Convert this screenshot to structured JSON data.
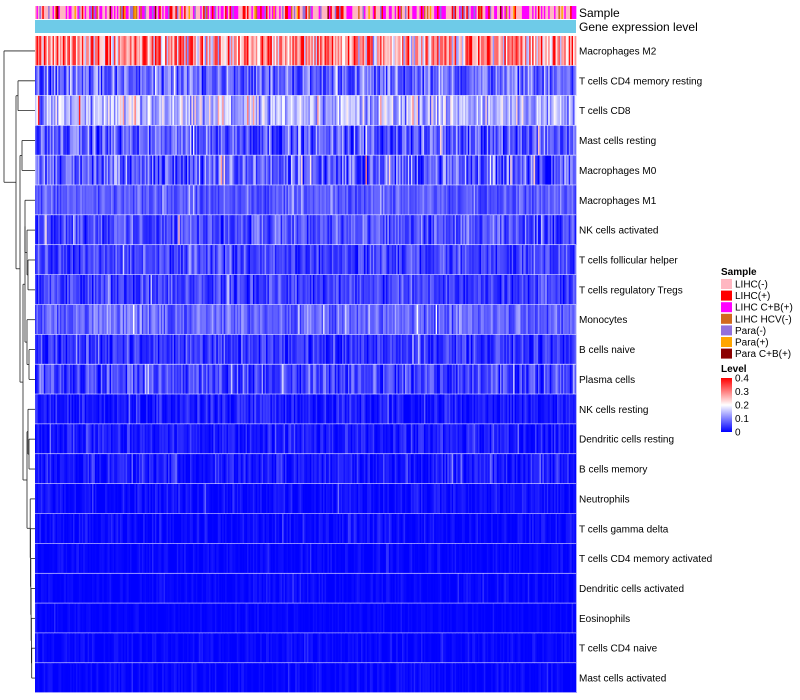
{
  "chart_data": {
    "type": "heatmap",
    "title": "",
    "column_annotations": [
      {
        "name": "Sample"
      },
      {
        "name": "Gene expression level"
      }
    ],
    "n_columns": 370,
    "rows": [
      {
        "label": "Macrophages M2",
        "mean": 0.28,
        "spread": 0.12
      },
      {
        "label": "T cells CD4 memory resting",
        "mean": 0.08,
        "spread": 0.06
      },
      {
        "label": "T cells CD8",
        "mean": 0.14,
        "spread": 0.07
      },
      {
        "label": "Mast cells resting",
        "mean": 0.07,
        "spread": 0.06
      },
      {
        "label": "Macrophages M0",
        "mean": 0.07,
        "spread": 0.07
      },
      {
        "label": "Macrophages M1",
        "mean": 0.07,
        "spread": 0.03
      },
      {
        "label": "NK cells activated",
        "mean": 0.06,
        "spread": 0.05
      },
      {
        "label": "T cells follicular helper",
        "mean": 0.05,
        "spread": 0.04
      },
      {
        "label": "T cells regulatory  Tregs",
        "mean": 0.05,
        "spread": 0.04
      },
      {
        "label": "Monocytes",
        "mean": 0.08,
        "spread": 0.04
      },
      {
        "label": "B cells naive",
        "mean": 0.04,
        "spread": 0.04
      },
      {
        "label": "Plasma cells",
        "mean": 0.05,
        "spread": 0.05
      },
      {
        "label": "NK cells resting",
        "mean": 0.02,
        "spread": 0.03
      },
      {
        "label": "Dendritic cells resting",
        "mean": 0.02,
        "spread": 0.03
      },
      {
        "label": "B cells memory",
        "mean": 0.02,
        "spread": 0.03
      },
      {
        "label": "Neutrophils",
        "mean": 0.01,
        "spread": 0.02
      },
      {
        "label": "T cells gamma delta",
        "mean": 0.005,
        "spread": 0.02
      },
      {
        "label": "T cells CD4 memory activated",
        "mean": 0.003,
        "spread": 0.015
      },
      {
        "label": "Dendritic cells activated",
        "mean": 0.003,
        "spread": 0.015
      },
      {
        "label": "Eosinophils",
        "mean": 0.002,
        "spread": 0.01
      },
      {
        "label": "T cells CD4 naive",
        "mean": 0.003,
        "spread": 0.015
      },
      {
        "label": "Mast cells activated",
        "mean": 0.003,
        "spread": 0.015
      }
    ],
    "sample_legend": {
      "title": "Sample",
      "items": [
        {
          "label": "LIHC(-)",
          "color": "#ffb6c1"
        },
        {
          "label": "LIHC(+)",
          "color": "#ff0000"
        },
        {
          "label": "LIHC C+B(+)",
          "color": "#ff00ff"
        },
        {
          "label": "LIHC HCV(-)",
          "color": "#d2691e"
        },
        {
          "label": "Para(-)",
          "color": "#9370db"
        },
        {
          "label": "Para(+)",
          "color": "#ffa500"
        },
        {
          "label": "Para C+B(+)",
          "color": "#8b0000"
        }
      ]
    },
    "level_legend": {
      "title": "Level",
      "ticks": [
        "0.4",
        "0.3",
        "0.2",
        "0.1",
        "0"
      ],
      "range": [
        0,
        0.4
      ],
      "colors": [
        "#0000ff",
        "#ffffff",
        "#ff0000"
      ]
    },
    "expression_bar_color": "#6ecbe8"
  }
}
